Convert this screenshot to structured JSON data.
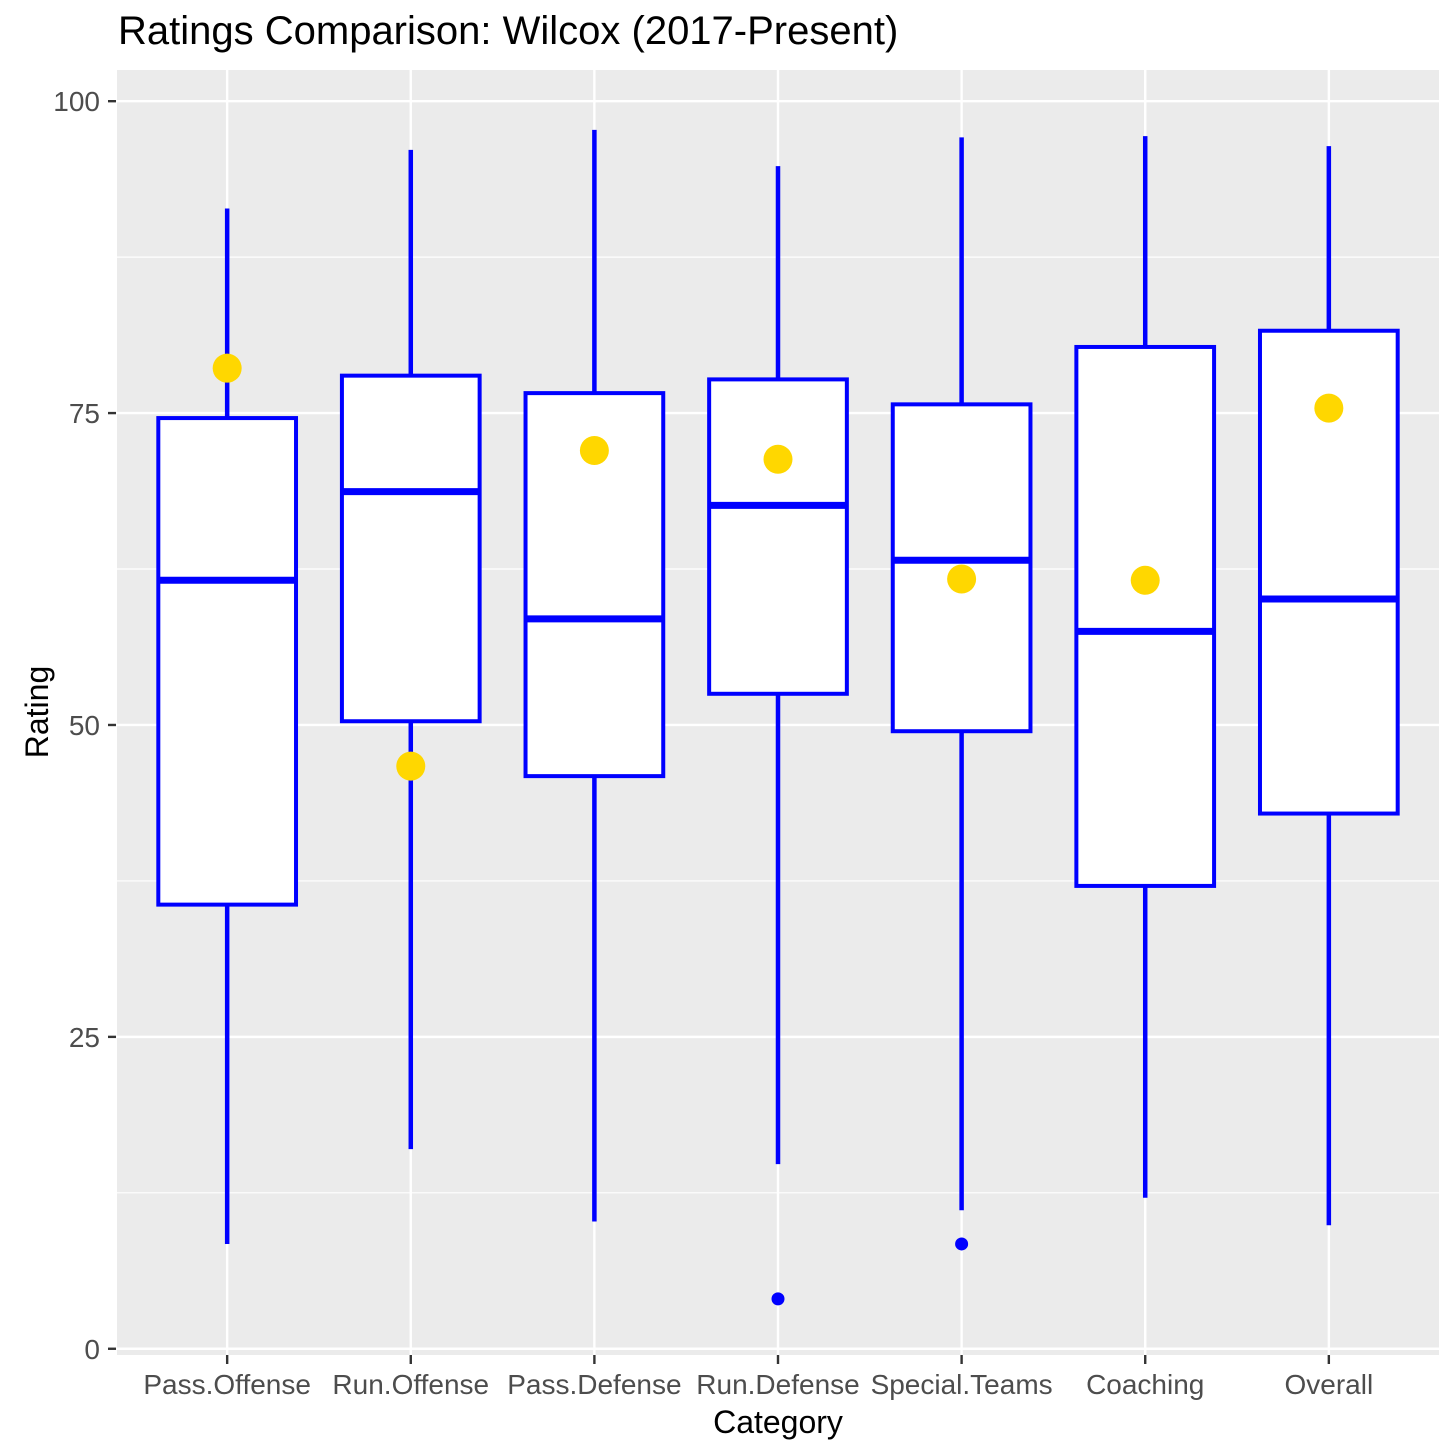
{
  "title": "Ratings Comparison: Wilcox (2017-Present)",
  "chart_data": {
    "type": "boxplot",
    "title": "Ratings Comparison: Wilcox (2017-Present)",
    "xlabel": "Category",
    "ylabel": "Rating",
    "ylim": [
      -0.5,
      102.5
    ],
    "y_major_ticks": [
      0,
      25,
      50,
      75,
      100
    ],
    "y_minor_gridlines": [
      12.5,
      37.5,
      62.5,
      87.5
    ],
    "grid": "white major+minor horizontal lines, white vertical line at each category center, grey panel",
    "legend": "none",
    "categories": [
      "Pass.Offense",
      "Run.Offense",
      "Pass.Defense",
      "Run.Defense",
      "Special.Teams",
      "Coaching",
      "Overall"
    ],
    "boxes": [
      {
        "category": "Pass.Offense",
        "whisker_low": 8.4,
        "q1": 35.6,
        "median": 61.6,
        "q3": 74.6,
        "whisker_high": 91.4,
        "mean": 78.6,
        "outliers": []
      },
      {
        "category": "Run.Offense",
        "whisker_low": 16.0,
        "q1": 50.3,
        "median": 68.7,
        "q3": 78.0,
        "whisker_high": 96.1,
        "mean": 46.7,
        "outliers": []
      },
      {
        "category": "Pass.Defense",
        "whisker_low": 10.2,
        "q1": 45.9,
        "median": 58.5,
        "q3": 76.6,
        "whisker_high": 97.7,
        "mean": 72.0,
        "outliers": []
      },
      {
        "category": "Run.Defense",
        "whisker_low": 14.8,
        "q1": 52.5,
        "median": 67.6,
        "q3": 77.7,
        "whisker_high": 94.8,
        "mean": 71.3,
        "outliers": [
          4.0
        ]
      },
      {
        "category": "Special.Teams",
        "whisker_low": 11.1,
        "q1": 49.5,
        "median": 63.2,
        "q3": 75.7,
        "whisker_high": 97.1,
        "mean": 61.7,
        "outliers": [
          8.4
        ]
      },
      {
        "category": "Coaching",
        "whisker_low": 12.1,
        "q1": 37.1,
        "median": 57.5,
        "q3": 80.3,
        "whisker_high": 97.2,
        "mean": 61.6,
        "outliers": []
      },
      {
        "category": "Overall",
        "whisker_low": 9.9,
        "q1": 42.9,
        "median": 60.1,
        "q3": 81.6,
        "whisker_high": 96.4,
        "mean": 75.4,
        "outliers": []
      }
    ],
    "colors": {
      "box_stroke": "#0000FF",
      "box_fill": "#FFFFFF",
      "median": "#0000FF",
      "mean_dot": "#FFD700",
      "outlier_dot": "#0000FF",
      "panel_bg": "#EBEBEB",
      "gridline": "#FFFFFF",
      "tick_label": "#4D4D4D",
      "tick_mark": "#333333",
      "axis_title": "#000000"
    }
  }
}
